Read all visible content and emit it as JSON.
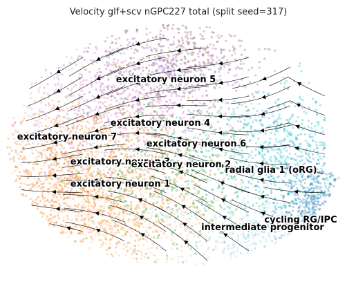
{
  "chart_data": {
    "type": "scatter",
    "title": "Velocity glf+scv nGPC227 total (split seed=317)",
    "xlabel": "",
    "ylabel": "",
    "axes_visible": false,
    "grid": false,
    "legend": "on data",
    "overlay": "velocity streamlines with arrowheads",
    "series": [
      {
        "name": "excitatory neuron 5",
        "color": "#9467bd"
      },
      {
        "name": "excitatory neuron 4",
        "color": "#e377c2"
      },
      {
        "name": "excitatory neuron 7",
        "color": "#c5b0d5"
      },
      {
        "name": "excitatory neuron 6",
        "color": "#8c564b"
      },
      {
        "name": "excitatory neuron 3",
        "color": "#ff7f0e"
      },
      {
        "name": "excitatory neuron 2",
        "color": "#2ca02c"
      },
      {
        "name": "excitatory neuron 1",
        "color": "#ffbb78"
      },
      {
        "name": "radial glia 1 (oRG)",
        "color": "#17becf"
      },
      {
        "name": "cycling RG/IPC",
        "color": "#1f77b4"
      },
      {
        "name": "intermediate progenitor",
        "color": "#9edae5"
      }
    ]
  }
}
